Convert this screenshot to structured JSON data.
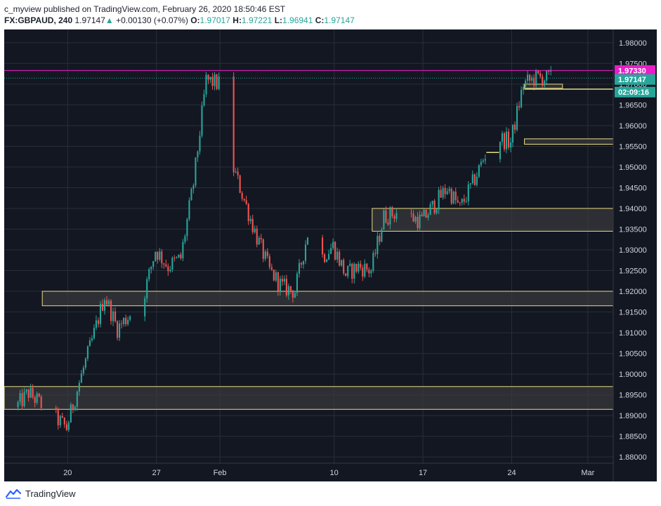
{
  "header": {
    "publisher": "c_myview",
    "published_text": "published on TradingView.com, February 26, 2020 18:50:46 EST"
  },
  "ohlc": {
    "symbol": "FX:GBPAUD, 240",
    "last": "1.97147",
    "arrow": "▲",
    "change": "+0.00130 (+0.07%)",
    "o_label": "O:",
    "o": "1.97017",
    "h_label": "H:",
    "h": "1.97221",
    "l_label": "L:",
    "l": "1.96941",
    "c_label": "C:",
    "c": "1.97147"
  },
  "colors": {
    "background": "#131722",
    "grid": "#2a2e39",
    "up": "#26a69a",
    "down": "#ef5350",
    "zone_border": "#e8dc83",
    "zone_fill": "#3a3a3c",
    "alert_line": "#e91ec8",
    "price_line": "#26a69a",
    "axis_text": "#d1d4dc"
  },
  "price_tags": {
    "alert": "1.97330",
    "current": "1.97147",
    "countdown": "02:09:16"
  },
  "footer": {
    "brand": "TradingView",
    "logo_icon": "tradingview-logo-icon"
  },
  "chart_data": {
    "type": "candlestick",
    "symbol": "FX:GBPAUD",
    "interval": "240",
    "y_ticks": [
      "1.98000",
      "1.97500",
      "1.97000",
      "1.96500",
      "1.96000",
      "1.95500",
      "1.95000",
      "1.94500",
      "1.94000",
      "1.93500",
      "1.93000",
      "1.92500",
      "1.92000",
      "1.91500",
      "1.91000",
      "1.90500",
      "1.90000",
      "1.89500",
      "1.89000",
      "1.88500",
      "1.88000"
    ],
    "ylim": [
      1.8785,
      1.9832
    ],
    "x_labels": [
      "20",
      "27",
      "Feb",
      "10",
      "17",
      "24",
      "Mar"
    ],
    "x_label_dates": [
      "2020-01-20",
      "2020-01-27",
      "2020-02-01",
      "2020-02-10",
      "2020-02-17",
      "2020-02-24",
      "2020-03-01"
    ],
    "x_range": [
      "2020-01-15",
      "2020-03-03"
    ],
    "anchors": [
      {
        "date": "2020-01-16",
        "price": 1.892
      },
      {
        "date": "2020-01-17",
        "price": 1.8955
      },
      {
        "date": "2020-01-20",
        "price": 1.887
      },
      {
        "date": "2020-01-21",
        "price": 1.898
      },
      {
        "date": "2020-01-22",
        "price": 1.908
      },
      {
        "date": "2020-01-23",
        "price": 1.919
      },
      {
        "date": "2020-01-24",
        "price": 1.911
      },
      {
        "date": "2020-01-26",
        "price": 1.918
      },
      {
        "date": "2020-01-27",
        "price": 1.93
      },
      {
        "date": "2020-01-28",
        "price": 1.926
      },
      {
        "date": "2020-01-29",
        "price": 1.928
      },
      {
        "date": "2020-01-30",
        "price": 1.946
      },
      {
        "date": "2020-01-31",
        "price": 1.971
      },
      {
        "date": "2020-02-01",
        "price": 1.97
      },
      {
        "date": "2020-02-02",
        "price": 1.951
      },
      {
        "date": "2020-02-03",
        "price": 1.942
      },
      {
        "date": "2020-02-04",
        "price": 1.933
      },
      {
        "date": "2020-02-05",
        "price": 1.925
      },
      {
        "date": "2020-02-06",
        "price": 1.921
      },
      {
        "date": "2020-02-07",
        "price": 1.92
      },
      {
        "date": "2020-02-08",
        "price": 1.934
      },
      {
        "date": "2020-02-09",
        "price": 1.928
      },
      {
        "date": "2020-02-10",
        "price": 1.931
      },
      {
        "date": "2020-02-11",
        "price": 1.924
      },
      {
        "date": "2020-02-12",
        "price": 1.926
      },
      {
        "date": "2020-02-13",
        "price": 1.925
      },
      {
        "date": "2020-02-14",
        "price": 1.938
      },
      {
        "date": "2020-02-15",
        "price": 1.939
      },
      {
        "date": "2020-02-16",
        "price": 1.938
      },
      {
        "date": "2020-02-17",
        "price": 1.937
      },
      {
        "date": "2020-02-18",
        "price": 1.941
      },
      {
        "date": "2020-02-19",
        "price": 1.945
      },
      {
        "date": "2020-02-20",
        "price": 1.94
      },
      {
        "date": "2020-02-21",
        "price": 1.946
      },
      {
        "date": "2020-02-22",
        "price": 1.953
      },
      {
        "date": "2020-02-23",
        "price": 1.957
      },
      {
        "date": "2020-02-24",
        "price": 1.956
      },
      {
        "date": "2020-02-25",
        "price": 1.97
      },
      {
        "date": "2020-02-26",
        "price": 1.9715
      },
      {
        "date": "2020-02-27",
        "price": 1.97147
      }
    ],
    "zones": [
      {
        "from": "2020-01-15",
        "to": "2020-03-03",
        "top": 1.897,
        "bottom": 1.8915
      },
      {
        "from": "2020-01-18",
        "to": "2020-03-03",
        "top": 1.92,
        "bottom": 1.9165
      },
      {
        "from": "2020-02-13",
        "to": "2020-03-03",
        "top": 1.94,
        "bottom": 1.9345
      },
      {
        "from": "2020-02-25",
        "to": "2020-03-03",
        "top": 1.9568,
        "bottom": 1.9555
      },
      {
        "from": "2020-02-25",
        "to": "2020-02-28",
        "top": 1.97,
        "bottom": 1.969
      }
    ],
    "levels": [
      {
        "from": "2020-02-22",
        "to": "2020-02-23",
        "price": 1.9535
      },
      {
        "from": "2020-02-25",
        "to": "2020-03-03",
        "price": 1.9688
      }
    ],
    "alert_price": 1.9733,
    "last_price": 1.97147
  }
}
